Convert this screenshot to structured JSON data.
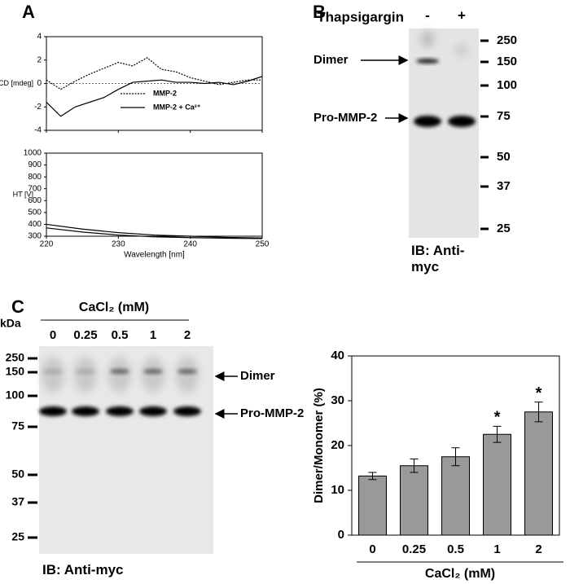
{
  "panel_labels": [
    "A",
    "B",
    "C"
  ],
  "chart_data": [
    {
      "type": "line",
      "y_label": "CD [mdeg]",
      "xlim": [
        220,
        250
      ],
      "xticks": [
        220,
        230,
        240,
        250
      ],
      "ylim": [
        -4,
        4
      ],
      "yticks": [
        -4,
        -2,
        0,
        2,
        4
      ],
      "zero_line": true,
      "x": [
        220,
        222,
        224,
        226,
        228,
        230,
        232,
        234,
        236,
        238,
        240,
        242,
        244,
        246,
        248,
        250
      ],
      "series": [
        {
          "name": "MMP-2",
          "color": "#000000",
          "dash": true,
          "values": [
            0.3,
            -0.5,
            0.2,
            0.8,
            1.3,
            1.8,
            1.5,
            2.2,
            1.2,
            1.0,
            0.5,
            0.2,
            -0.1,
            0.1,
            0.3,
            0.3
          ]
        },
        {
          "name": "MMP-2 + Ca²⁺",
          "color": "#000000",
          "dash": false,
          "values": [
            -1.6,
            -2.8,
            -2.0,
            -1.6,
            -1.2,
            -0.5,
            0.1,
            0.2,
            0.3,
            0.1,
            0.1,
            0.0,
            0.1,
            -0.1,
            0.2,
            0.6
          ]
        }
      ]
    },
    {
      "type": "line",
      "y_label": "HT [V]",
      "x_label": "Wavelength [nm]",
      "xlim": [
        220,
        250
      ],
      "xticks": [
        220,
        230,
        240,
        250
      ],
      "ylim": [
        300,
        1000
      ],
      "yticks": [
        300,
        400,
        500,
        600,
        700,
        800,
        900,
        1000
      ],
      "x": [
        220,
        225,
        230,
        235,
        240,
        245,
        250
      ],
      "series": [
        {
          "color": "#000000",
          "values": [
            400,
            360,
            330,
            310,
            300,
            290,
            285
          ]
        },
        {
          "color": "#000000",
          "values": [
            370,
            335,
            310,
            295,
            288,
            283,
            280
          ]
        }
      ]
    },
    {
      "type": "bar",
      "y_label": "Dimer/Monomer (%)",
      "x_label": "CaCl₂ (mM)",
      "categories": [
        "0",
        "0.25",
        "0.5",
        "1",
        "2"
      ],
      "values": [
        13.2,
        15.5,
        17.5,
        22.5,
        27.5
      ],
      "errors": [
        0.8,
        1.5,
        2.0,
        1.8,
        2.2
      ],
      "significance": [
        null,
        null,
        null,
        "*",
        "*"
      ],
      "color": "#999999",
      "ylim": [
        0,
        40
      ],
      "yticks": [
        0,
        10,
        20,
        30,
        40
      ]
    }
  ],
  "blot_b": {
    "treatment": "Thapsigargin",
    "lanes": [
      "-",
      "+"
    ],
    "markers": [
      "250",
      "150",
      "100",
      "75",
      "50",
      "37",
      "25"
    ],
    "bands": [
      "Dimer",
      "Pro-MMP-2"
    ],
    "caption": "IB: Anti-myc"
  },
  "blot_c": {
    "treatment": "CaCl₂ (mM)",
    "lanes": [
      "0",
      "0.25",
      "0.5",
      "1",
      "2"
    ],
    "unit": "kDa",
    "markers": [
      "250",
      "150",
      "100",
      "75",
      "50",
      "37",
      "25"
    ],
    "bands": [
      "Dimer",
      "Pro-MMP-2"
    ],
    "caption": "IB: Anti-myc"
  }
}
